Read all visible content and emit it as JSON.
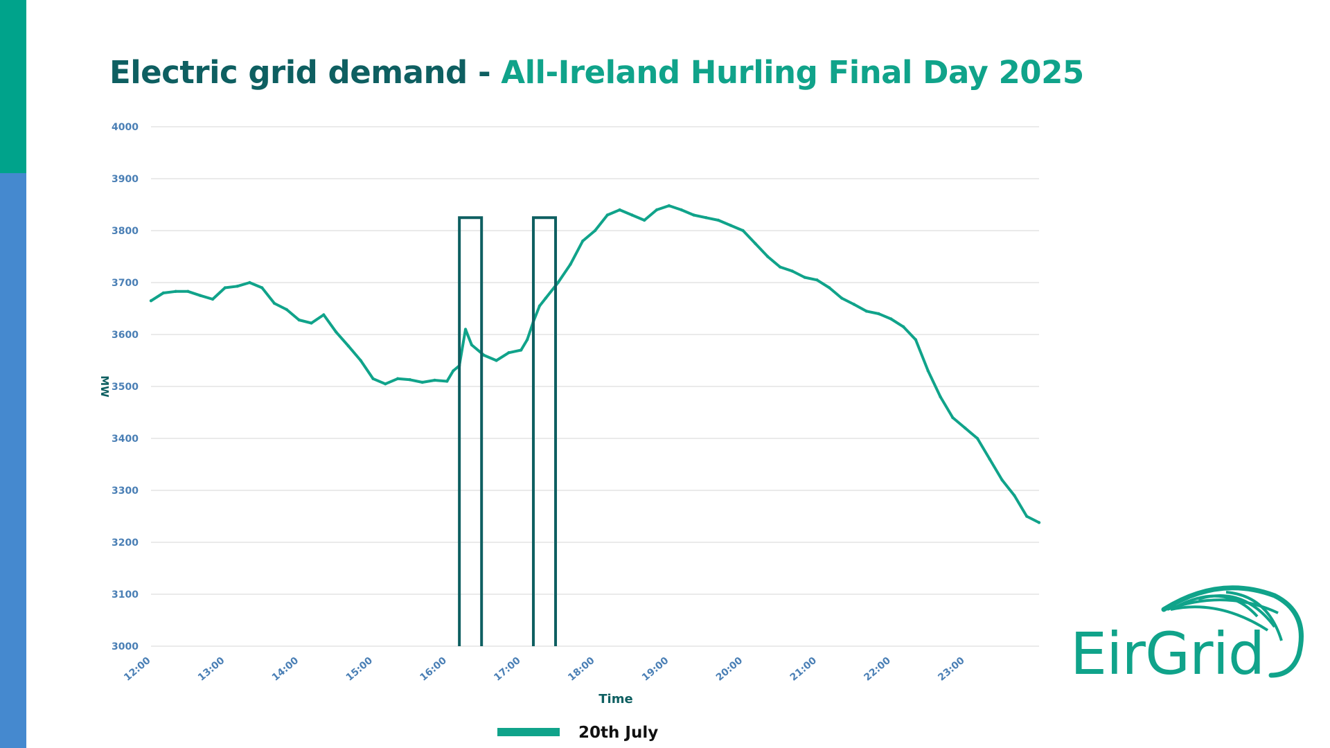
{
  "title": {
    "part1": "Electric grid demand - ",
    "part2": "All-Ireland Hurling Final Day 2025"
  },
  "logo": {
    "text": "EirGrid",
    "icon": "eirgrid-arc-icon"
  },
  "colors": {
    "series": "#10A38A",
    "highlight": "#0E5F61",
    "tick_label": "#4A7FB5",
    "grid": "#E3E3E3",
    "side_top": "#00A38B",
    "side_bottom": "#4589CF"
  },
  "chart_data": {
    "type": "line",
    "xlabel": "Time",
    "ylabel": "MW",
    "ylim": [
      3000,
      4000
    ],
    "y_ticks": [
      3000,
      3100,
      3200,
      3300,
      3400,
      3500,
      3600,
      3700,
      3800,
      3900,
      4000
    ],
    "x_ticks": [
      "12:00",
      "13:00",
      "14:00",
      "15:00",
      "16:00",
      "17:00",
      "18:00",
      "19:00",
      "20:00",
      "21:00",
      "22:00",
      "23:00"
    ],
    "xlim": [
      "12:00",
      "24:00"
    ],
    "grid": true,
    "legend_position": "bottom-center",
    "series": [
      {
        "name": "20th July",
        "x": [
          "12:00",
          "12:10",
          "12:20",
          "12:30",
          "12:40",
          "12:50",
          "13:00",
          "13:10",
          "13:20",
          "13:30",
          "13:40",
          "13:50",
          "14:00",
          "14:10",
          "14:20",
          "14:30",
          "14:40",
          "14:50",
          "15:00",
          "15:10",
          "15:20",
          "15:30",
          "15:40",
          "15:50",
          "16:00",
          "16:05",
          "16:10",
          "16:15",
          "16:20",
          "16:30",
          "16:40",
          "16:50",
          "17:00",
          "17:05",
          "17:10",
          "17:15",
          "17:20",
          "17:30",
          "17:40",
          "17:50",
          "18:00",
          "18:10",
          "18:20",
          "18:30",
          "18:40",
          "18:50",
          "19:00",
          "19:10",
          "19:20",
          "19:30",
          "19:40",
          "19:50",
          "20:00",
          "20:10",
          "20:20",
          "20:30",
          "20:40",
          "20:50",
          "21:00",
          "21:10",
          "21:20",
          "21:30",
          "21:40",
          "21:50",
          "22:00",
          "22:10",
          "22:20",
          "22:30",
          "22:40",
          "22:50",
          "23:00",
          "23:10",
          "23:20",
          "23:30",
          "23:40",
          "23:50",
          "24:00"
        ],
        "y": [
          3665,
          3680,
          3683,
          3683,
          3675,
          3668,
          3690,
          3693,
          3700,
          3690,
          3660,
          3648,
          3628,
          3622,
          3638,
          3605,
          3578,
          3550,
          3515,
          3505,
          3515,
          3513,
          3508,
          3512,
          3510,
          3530,
          3540,
          3610,
          3580,
          3560,
          3550,
          3565,
          3570,
          3590,
          3625,
          3655,
          3670,
          3700,
          3735,
          3780,
          3800,
          3830,
          3840,
          3830,
          3820,
          3840,
          3848,
          3840,
          3830,
          3825,
          3820,
          3810,
          3800,
          3775,
          3750,
          3730,
          3722,
          3710,
          3705,
          3690,
          3670,
          3658,
          3645,
          3640,
          3630,
          3615,
          3590,
          3530,
          3480,
          3440,
          3420,
          3400,
          3360,
          3320,
          3290,
          3250,
          3238
        ]
      }
    ],
    "highlight_periods": [
      {
        "start": "16:10",
        "end": "16:28",
        "top": 3825
      },
      {
        "start": "17:10",
        "end": "17:28",
        "top": 3825
      }
    ]
  }
}
